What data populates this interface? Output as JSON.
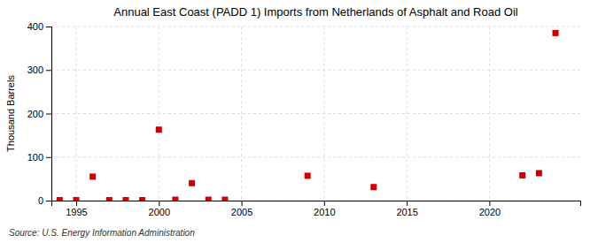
{
  "chart_data": {
    "type": "scatter",
    "title": "Annual East Coast (PADD 1) Imports from Netherlands of Asphalt and Road Oil",
    "ylabel": "Thousand Barrels",
    "source": "Source: U.S. Energy Information Administration",
    "x": [
      1994,
      1995,
      1996,
      1997,
      1998,
      1999,
      2000,
      2001,
      2002,
      2003,
      2004,
      2009,
      2013,
      2022,
      2023,
      2024
    ],
    "values": [
      1,
      1,
      55,
      1,
      1,
      1,
      163,
      2,
      40,
      2,
      2,
      57,
      31,
      58,
      63,
      385
    ],
    "color": "#cc0000",
    "marker": "square",
    "xlim": [
      1993.5,
      2025.5
    ],
    "xticks": [
      1995,
      2000,
      2005,
      2010,
      2015,
      2020
    ],
    "ylim": [
      0,
      400
    ],
    "yticks": [
      0,
      100,
      200,
      300,
      400
    ],
    "grid": true
  }
}
